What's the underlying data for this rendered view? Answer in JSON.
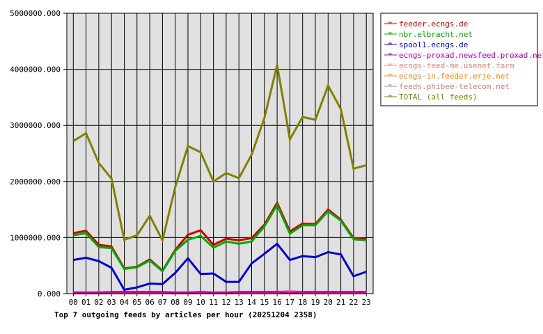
{
  "chart_data": {
    "type": "line",
    "title": "Top 7 outgoing feeds by articles per hour (20251204 2358)",
    "xlabel": "",
    "ylabel": "",
    "ylim": [
      0,
      5000000
    ],
    "y_ticks": [
      "0.000",
      "1000000.000",
      "2000000.000",
      "3000000.000",
      "4000000.000",
      "5000000.000"
    ],
    "y_tick_values": [
      0,
      1000000,
      2000000,
      3000000,
      4000000,
      5000000
    ],
    "grid": true,
    "legend_position": "right",
    "x": [
      "00",
      "01",
      "02",
      "03",
      "04",
      "05",
      "06",
      "07",
      "08",
      "09",
      "10",
      "11",
      "12",
      "13",
      "14",
      "15",
      "16",
      "17",
      "18",
      "19",
      "20",
      "21",
      "22",
      "23"
    ],
    "series": [
      {
        "name": "feeder.ecngs.de",
        "color": "#cc0000",
        "values": [
          1080000,
          1120000,
          870000,
          840000,
          450000,
          480000,
          610000,
          410000,
          780000,
          1050000,
          1130000,
          870000,
          980000,
          950000,
          990000,
          1230000,
          1620000,
          1110000,
          1250000,
          1240000,
          1500000,
          1320000,
          990000,
          980000
        ]
      },
      {
        "name": "nbr.elbracht.net",
        "color": "#00aa00",
        "values": [
          1040000,
          1080000,
          830000,
          810000,
          440000,
          470000,
          590000,
          400000,
          760000,
          960000,
          1030000,
          820000,
          930000,
          890000,
          930000,
          1200000,
          1580000,
          1070000,
          1220000,
          1220000,
          1470000,
          1300000,
          970000,
          950000
        ]
      },
      {
        "name": "spool1.ecngs.de",
        "color": "#0000cc",
        "values": [
          600000,
          640000,
          580000,
          460000,
          70000,
          110000,
          180000,
          170000,
          370000,
          630000,
          350000,
          360000,
          210000,
          210000,
          540000,
          710000,
          890000,
          600000,
          670000,
          650000,
          740000,
          700000,
          310000,
          390000
        ]
      },
      {
        "name": "ecngs-proxad.newsfeed.proxad.net",
        "color": "#bb00bb",
        "values": [
          20000,
          20000,
          20000,
          30000,
          30000,
          30000,
          30000,
          30000,
          20000,
          20000,
          30000,
          20000,
          20000,
          30000,
          30000,
          30000,
          30000,
          20000,
          30000,
          30000,
          30000,
          30000,
          30000,
          30000
        ]
      },
      {
        "name": "ecngs-feed-me.usenet.farm",
        "color": "#f08080",
        "values": [
          20000,
          20000,
          20000,
          20000,
          20000,
          20000,
          20000,
          20000,
          20000,
          25000,
          20000,
          20000,
          20000,
          20000,
          20000,
          20000,
          25000,
          50000,
          25000,
          20000,
          20000,
          20000,
          20000,
          20000
        ]
      },
      {
        "name": "ecngs-in.feeder.erje.net",
        "color": "#ff8800",
        "values": [
          5000,
          5000,
          5000,
          5000,
          5000,
          5000,
          5000,
          5000,
          5000,
          5000,
          5000,
          5000,
          5000,
          5000,
          5000,
          5000,
          5000,
          5000,
          5000,
          5000,
          5000,
          5000,
          5000,
          5000
        ]
      },
      {
        "name": "feeds.phibee-telecom.net",
        "color": "#cc8080",
        "values": [
          20000,
          20000,
          20000,
          20000,
          20000,
          20000,
          20000,
          20000,
          15000,
          20000,
          20000,
          20000,
          20000,
          20000,
          20000,
          20000,
          20000,
          20000,
          20000,
          20000,
          20000,
          20000,
          20000,
          20000
        ]
      },
      {
        "name": "TOTAL (all feeds)",
        "color": "#808000",
        "values": [
          2720000,
          2860000,
          2330000,
          2050000,
          960000,
          1040000,
          1390000,
          950000,
          1900000,
          2630000,
          2520000,
          2000000,
          2150000,
          2060000,
          2480000,
          3130000,
          4080000,
          2750000,
          3150000,
          3100000,
          3710000,
          3290000,
          2230000,
          2290000
        ]
      }
    ]
  },
  "colors": {
    "plot_background": "#e0e0e0",
    "grid": "#000000",
    "page_background": "#ffffff"
  }
}
